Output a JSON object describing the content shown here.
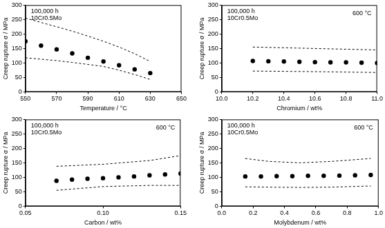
{
  "chart_data": [
    {
      "type": "scatter",
      "x_label": "Temperature / °C",
      "y_label": "Creep rupture σ / MPa",
      "annotations": [
        "100,000 h",
        "10Cr0.5Mo"
      ],
      "xlim": [
        550,
        650
      ],
      "xticks": [
        550,
        570,
        590,
        610,
        630,
        650
      ],
      "ylim": [
        0,
        300
      ],
      "yticks": [
        0,
        50,
        100,
        150,
        200,
        250,
        300
      ],
      "grid": false,
      "legend": false,
      "series": [
        {
          "type": "scatter",
          "marker": "circle",
          "color": "#000000",
          "x": [
            550,
            560,
            570,
            580,
            590,
            600,
            610,
            620,
            630
          ],
          "values": [
            175,
            160,
            147,
            133,
            118,
            105,
            92,
            78,
            65
          ]
        },
        {
          "type": "line",
          "line_style": "dashed",
          "color": "#000000",
          "x": [
            550,
            560,
            570,
            580,
            590,
            600,
            610,
            620,
            630
          ],
          "values": [
            255,
            240,
            225,
            210,
            193,
            175,
            155,
            132,
            105
          ]
        },
        {
          "type": "line",
          "line_style": "dashed",
          "color": "#000000",
          "x": [
            550,
            560,
            570,
            580,
            590,
            600,
            610,
            620,
            630
          ],
          "values": [
            118,
            113,
            108,
            102,
            95,
            88,
            75,
            60,
            43
          ]
        }
      ]
    },
    {
      "type": "scatter",
      "x_label": "Chromium / wt%",
      "y_label": "Creep rupture σ / MPa",
      "annotations": [
        "100,000 h",
        "10Cr0.5Mo",
        "600 °C"
      ],
      "xlim": [
        10,
        11
      ],
      "xticks": [
        {
          "value": 10,
          "label": "10.0"
        },
        10.2,
        10.4,
        10.6,
        10.8,
        {
          "value": 11,
          "label": "11.0"
        }
      ],
      "ylim": [
        0,
        300
      ],
      "yticks": [
        0,
        50,
        100,
        150,
        200,
        250,
        300
      ],
      "grid": false,
      "legend": false,
      "series": [
        {
          "type": "scatter",
          "marker": "circle",
          "color": "#000000",
          "x": [
            10.2,
            10.3,
            10.4,
            10.5,
            10.6,
            10.7,
            10.8,
            10.9,
            11.0
          ],
          "values": [
            107,
            106,
            105,
            104,
            103,
            102,
            102,
            101,
            100
          ]
        },
        {
          "type": "line",
          "line_style": "dashed",
          "color": "#000000",
          "x": [
            10.2,
            10.6,
            11.0
          ],
          "values": [
            155,
            150,
            145
          ]
        },
        {
          "type": "line",
          "line_style": "dashed",
          "color": "#000000",
          "x": [
            10.2,
            10.6,
            11.0
          ],
          "values": [
            72,
            70,
            67
          ]
        }
      ]
    },
    {
      "type": "scatter",
      "x_label": "Carbon / wt%",
      "y_label": "Creep rupture σ / MPa",
      "annotations": [
        "100,000 h",
        "10Cr0.5Mo",
        "600 °C"
      ],
      "xlim": [
        0.05,
        0.15
      ],
      "xticks": [
        0.05,
        {
          "value": 0.1,
          "label": "0.10"
        },
        0.15
      ],
      "ylim": [
        0,
        300
      ],
      "yticks": [
        0,
        50,
        100,
        150,
        200,
        250,
        300
      ],
      "grid": false,
      "legend": false,
      "series": [
        {
          "type": "scatter",
          "marker": "circle",
          "color": "#000000",
          "x": [
            0.07,
            0.08,
            0.09,
            0.1,
            0.11,
            0.12,
            0.13,
            0.14,
            0.15
          ],
          "values": [
            88,
            92,
            95,
            97,
            100,
            103,
            107,
            110,
            113
          ]
        },
        {
          "type": "line",
          "line_style": "dashed",
          "color": "#000000",
          "x": [
            0.07,
            0.1,
            0.13,
            0.15
          ],
          "values": [
            138,
            145,
            158,
            175
          ]
        },
        {
          "type": "line",
          "line_style": "dashed",
          "color": "#000000",
          "x": [
            0.07,
            0.1,
            0.13,
            0.15
          ],
          "values": [
            55,
            68,
            72,
            72
          ]
        }
      ]
    },
    {
      "type": "scatter",
      "x_label": "Molybdenum / wt%",
      "y_label": "Creep rupture σ / MPa",
      "annotations": [
        "100,000 h",
        "10Cr0.5Mo",
        "600 °C"
      ],
      "xlim": [
        0,
        1
      ],
      "xticks": [
        {
          "value": 0,
          "label": "0.0"
        },
        0.2,
        0.4,
        0.6,
        0.8,
        {
          "value": 1,
          "label": "1.0"
        }
      ],
      "ylim": [
        0,
        300
      ],
      "yticks": [
        0,
        50,
        100,
        150,
        200,
        250,
        300
      ],
      "grid": false,
      "legend": false,
      "series": [
        {
          "type": "scatter",
          "marker": "circle",
          "color": "#000000",
          "x": [
            0.15,
            0.25,
            0.35,
            0.45,
            0.55,
            0.65,
            0.75,
            0.85,
            0.95
          ],
          "values": [
            103,
            103,
            104,
            104,
            105,
            105,
            106,
            107,
            108
          ]
        },
        {
          "type": "line",
          "line_style": "dashed",
          "color": "#000000",
          "x": [
            0.15,
            0.3,
            0.5,
            0.7,
            0.95
          ],
          "values": [
            165,
            155,
            150,
            155,
            165
          ]
        },
        {
          "type": "line",
          "line_style": "dashed",
          "color": "#000000",
          "x": [
            0.15,
            0.3,
            0.5,
            0.7,
            0.95
          ],
          "values": [
            67,
            66,
            65,
            66,
            70
          ]
        }
      ]
    }
  ]
}
